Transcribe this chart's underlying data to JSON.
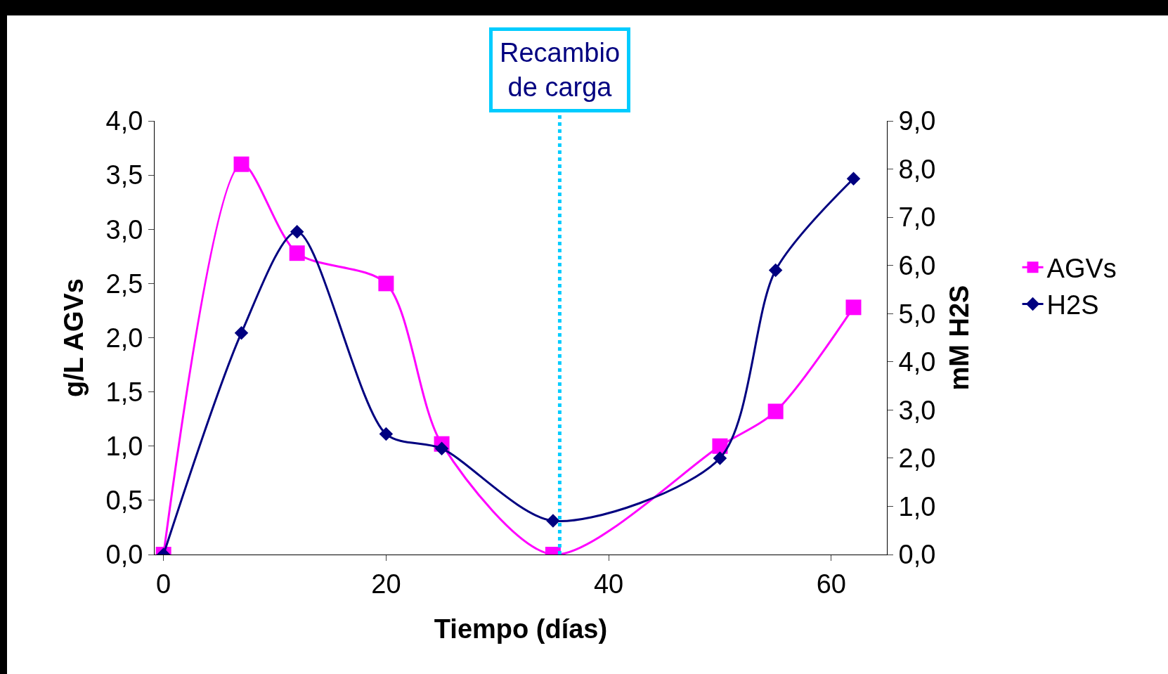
{
  "chart_data": {
    "type": "line",
    "xlabel": "Tiempo (días)",
    "ylabel": "g/L AGVs",
    "y2label": "mM H2S",
    "xlim": [
      -0.8,
      65
    ],
    "xticks": [
      0,
      20,
      40,
      60
    ],
    "ylim": [
      0,
      4
    ],
    "yticks": [
      {
        "value": 0,
        "label": "0,0"
      },
      {
        "value": 0.5,
        "label": "0,5"
      },
      {
        "value": 1,
        "label": "1,0"
      },
      {
        "value": 1.5,
        "label": "1,5"
      },
      {
        "value": 2,
        "label": "2,0"
      },
      {
        "value": 2.5,
        "label": "2,5"
      },
      {
        "value": 3,
        "label": "3,0"
      },
      {
        "value": 3.5,
        "label": "3,5"
      },
      {
        "value": 4,
        "label": "4,0"
      }
    ],
    "y2lim": [
      0,
      9
    ],
    "y2ticks": [
      {
        "value": 0,
        "label": "0,0"
      },
      {
        "value": 1,
        "label": "1,0"
      },
      {
        "value": 2,
        "label": "2,0"
      },
      {
        "value": 3,
        "label": "3,0"
      },
      {
        "value": 4,
        "label": "4,0"
      },
      {
        "value": 5,
        "label": "5,0"
      },
      {
        "value": 6,
        "label": "6,0"
      },
      {
        "value": 7,
        "label": "7,0"
      },
      {
        "value": 8,
        "label": "8,0"
      },
      {
        "value": 9,
        "label": "9,0"
      }
    ],
    "grid": false,
    "legend": "right",
    "line_style": "solid",
    "series": [
      {
        "name": "AGVs",
        "color": "#ff00ff",
        "marker": "square",
        "x": [
          0,
          7,
          12,
          20,
          25,
          35,
          50,
          55,
          62
        ],
        "values": [
          0,
          3.6,
          2.78,
          2.5,
          1.02,
          0,
          1.0,
          1.32,
          2.28
        ]
      },
      {
        "name": "H2S",
        "color": "#000080",
        "marker": "diamond",
        "axis": "y2",
        "x": [
          0,
          7,
          12,
          20,
          25,
          35,
          50,
          55,
          62
        ],
        "values": [
          0,
          4.6,
          6.7,
          2.5,
          2.2,
          0.7,
          2.0,
          5.9,
          7.8
        ]
      }
    ],
    "ref_lines": [
      {
        "axis": "x",
        "value": 35.6,
        "label": "Recambio\nde carga",
        "color": "#00ccff",
        "line_style": "dotted"
      }
    ]
  }
}
